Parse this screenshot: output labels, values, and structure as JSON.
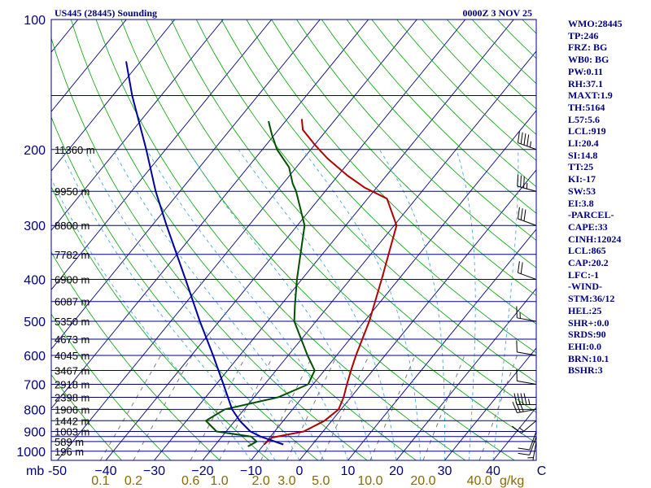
{
  "header": {
    "station": "US445 (28445) Sounding",
    "time": "0000Z  3 NOV 25"
  },
  "colors": {
    "plot_frame": "#000080",
    "isobar": "#000080",
    "isotherm": "#000080",
    "dry_adiabat": "#00a000",
    "moist_adiabat": "#4aa8e0",
    "mixing_ratio": "#707070",
    "temperature": "#b00000",
    "dewpoint": "#005000",
    "parcel": "#0000a0",
    "tick_labels": "#000080",
    "mixing_labels": "#8a6a00"
  },
  "chart_data": {
    "type": "line",
    "title": "US445 (28445) Sounding",
    "subtitle": "0000Z  3 NOV 25",
    "xlabel": "",
    "x_unit_label": "mb",
    "mixing_unit_label": "g/kg",
    "xlim": [
      -50,
      50
    ],
    "ylim": [
      1000,
      100
    ],
    "pressure_ticks": [
      {
        "p": 100,
        "label": "100"
      },
      {
        "p": 200,
        "label": "200"
      },
      {
        "p": 300,
        "label": "300"
      },
      {
        "p": 400,
        "label": "400"
      },
      {
        "p": 500,
        "label": "500"
      },
      {
        "p": 600,
        "label": "600"
      },
      {
        "p": 700,
        "label": "700"
      },
      {
        "p": 800,
        "label": "800"
      },
      {
        "p": 900,
        "label": "900"
      },
      {
        "p": 1000,
        "label": "1000"
      }
    ],
    "temperature_ticks": [
      {
        "t": -50,
        "label": "-50"
      },
      {
        "t": -40,
        "label": "−40"
      },
      {
        "t": -30,
        "label": "−30"
      },
      {
        "t": -20,
        "label": "−20"
      },
      {
        "t": -10,
        "label": "−10"
      },
      {
        "t": 0,
        "label": "0"
      },
      {
        "t": 10,
        "label": "10"
      },
      {
        "t": 20,
        "label": "20"
      },
      {
        "t": 30,
        "label": "30"
      },
      {
        "t": 40,
        "label": "40"
      },
      {
        "t": 50,
        "label": "C"
      }
    ],
    "mixing_ratio_labels": [
      {
        "w": 0.1,
        "label": "0.1"
      },
      {
        "w": 0.2,
        "label": "0.2"
      },
      {
        "w": 0.6,
        "label": "0.6"
      },
      {
        "w": 1.0,
        "label": "1.0"
      },
      {
        "w": 2.0,
        "label": "2.0"
      },
      {
        "w": 3.0,
        "label": "3.0"
      },
      {
        "w": 5.0,
        "label": "5.0"
      },
      {
        "w": 10.0,
        "label": "10.0"
      },
      {
        "w": 20.0,
        "label": "20.0"
      },
      {
        "w": 40.0,
        "label": "40.0"
      }
    ],
    "height_labels": [
      {
        "p": 200,
        "label": "11360 m"
      },
      {
        "p": 250,
        "label": "9950 m"
      },
      {
        "p": 300,
        "label": "8800 m"
      },
      {
        "p": 350,
        "label": "7782 m"
      },
      {
        "p": 400,
        "label": "6900 m"
      },
      {
        "p": 450,
        "label": "6087 m"
      },
      {
        "p": 500,
        "label": "5350 m"
      },
      {
        "p": 550,
        "label": "4673 m"
      },
      {
        "p": 600,
        "label": "4045 m"
      },
      {
        "p": 650,
        "label": "3467 m"
      },
      {
        "p": 700,
        "label": "2918 m"
      },
      {
        "p": 750,
        "label": "2398 m"
      },
      {
        "p": 800,
        "label": "1906 m"
      },
      {
        "p": 850,
        "label": "1442 m"
      },
      {
        "p": 900,
        "label": "1003 m"
      },
      {
        "p": 950,
        "label": "589 m"
      },
      {
        "p": 1000,
        "label": "196 m"
      }
    ],
    "series": [
      {
        "name": "Temperature",
        "unit": "C",
        "points": [
          [
            965,
            -10.0
          ],
          [
            930,
            -9.5
          ],
          [
            900,
            -4.0
          ],
          [
            850,
            -1.5
          ],
          [
            800,
            -0.5
          ],
          [
            750,
            -1.5
          ],
          [
            700,
            -3.0
          ],
          [
            650,
            -4.5
          ],
          [
            600,
            -6.0
          ],
          [
            500,
            -9.0
          ],
          [
            400,
            -13.5
          ],
          [
            300,
            -19.5
          ],
          [
            260,
            -26.0
          ],
          [
            245,
            -32.5
          ],
          [
            230,
            -38.0
          ],
          [
            210,
            -45.0
          ],
          [
            195,
            -50.0
          ],
          [
            180,
            -55.0
          ],
          [
            170,
            -57.0
          ]
        ]
      },
      {
        "name": "Dewpoint",
        "unit": "C",
        "points": [
          [
            975,
            -13.0
          ],
          [
            950,
            -12.0
          ],
          [
            925,
            -14.0
          ],
          [
            900,
            -22.0
          ],
          [
            850,
            -26.0
          ],
          [
            800,
            -24.0
          ],
          [
            750,
            -15.0
          ],
          [
            700,
            -11.0
          ],
          [
            650,
            -12.0
          ],
          [
            600,
            -16.0
          ],
          [
            500,
            -24.5
          ],
          [
            460,
            -27.0
          ],
          [
            400,
            -31.0
          ],
          [
            300,
            -38.5
          ],
          [
            250,
            -46.0
          ],
          [
            240,
            -48.0
          ],
          [
            220,
            -51.5
          ],
          [
            200,
            -57.0
          ],
          [
            185,
            -60.5
          ],
          [
            172,
            -63.5
          ]
        ]
      },
      {
        "name": "Parcel",
        "unit": "C",
        "points": [
          [
            965,
            -6.0
          ],
          [
            925,
            -12.0
          ],
          [
            900,
            -15.0
          ],
          [
            850,
            -19.0
          ],
          [
            800,
            -22.5
          ],
          [
            700,
            -28.5
          ],
          [
            600,
            -35.5
          ],
          [
            500,
            -44.0
          ],
          [
            400,
            -54.0
          ],
          [
            300,
            -67.0
          ],
          [
            250,
            -75.0
          ],
          [
            200,
            -84.0
          ],
          [
            150,
            -96.0
          ],
          [
            125,
            -103.0
          ]
        ]
      }
    ],
    "wind_barbs": [
      {
        "p": 200,
        "dir": 290,
        "spd": 45
      },
      {
        "p": 250,
        "dir": 285,
        "spd": 35
      },
      {
        "p": 300,
        "dir": 290,
        "spd": 30
      },
      {
        "p": 400,
        "dir": 290,
        "spd": 20
      },
      {
        "p": 500,
        "dir": 280,
        "spd": 15
      },
      {
        "p": 600,
        "dir": 280,
        "spd": 12
      },
      {
        "p": 700,
        "dir": 280,
        "spd": 10
      },
      {
        "p": 780,
        "dir": 270,
        "spd": 45
      },
      {
        "p": 800,
        "dir": 260,
        "spd": 30
      },
      {
        "p": 850,
        "dir": 230,
        "spd": 15
      },
      {
        "p": 900,
        "dir": 200,
        "spd": 10
      },
      {
        "p": 925,
        "dir": 200,
        "spd": 10
      },
      {
        "p": 950,
        "dir": 190,
        "spd": 5
      }
    ]
  },
  "indices": [
    "WMO:28445",
    "TP:246",
    "FRZ: BG",
    "WB0: BG",
    "PW:0.11",
    "RH:37.1",
    "MAXT:1.9",
    "TH:5164",
    "L57:5.6",
    "LCL:919",
    "LI:20.4",
    "SI:14.8",
    "TT:25",
    "KI:-17",
    "SW:53",
    "EI:3.8",
    "-PARCEL-",
    "CAPE:33",
    "CINH:12024",
    "LCL:865",
    "CAP:20.2",
    "LFC:-1",
    "-WIND-",
    "STM:36/12",
    "HEL:25",
    "SHR+:0.0",
    "SRDS:90",
    "EHI:0.0",
    "BRN:10.1",
    "BSHR:3"
  ]
}
